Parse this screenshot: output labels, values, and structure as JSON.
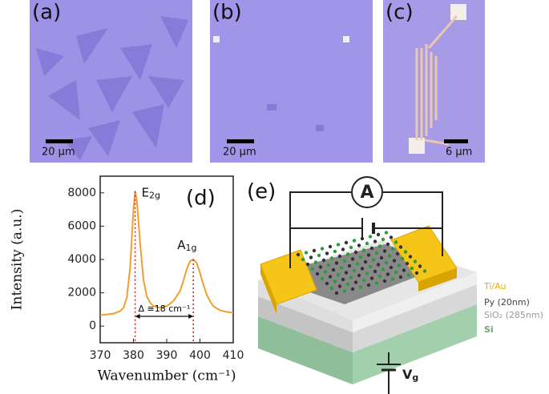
{
  "panels": {
    "a": {
      "label": "(a)",
      "scale": "20 μm"
    },
    "b": {
      "label": "(b)",
      "scale": "20 μm"
    },
    "c": {
      "label": "(c)",
      "scale": "6 μm"
    }
  },
  "chart_data": {
    "type": "line",
    "label": "(d)",
    "x_label": "Wavenumber (cm⁻¹)",
    "y_label": "Intensity (a.u.)",
    "x": [
      370,
      372,
      374,
      376,
      377,
      378,
      379,
      380,
      380.5,
      381,
      382,
      383,
      384,
      385,
      386,
      388,
      390,
      392,
      394,
      395,
      396,
      397,
      398,
      399,
      400,
      401,
      402,
      403,
      404,
      406,
      408,
      410
    ],
    "values": [
      650,
      700,
      750,
      900,
      1100,
      1700,
      3500,
      7000,
      8100,
      7600,
      5000,
      2800,
      1800,
      1400,
      1200,
      1100,
      1200,
      1500,
      2100,
      2700,
      3400,
      3900,
      4000,
      3800,
      3200,
      2500,
      1900,
      1500,
      1200,
      950,
      850,
      800
    ],
    "color": "#f0a030",
    "xlim": [
      370,
      410
    ],
    "ylim": [
      -1000,
      9000
    ],
    "xticks": [
      370,
      380,
      390,
      400,
      410
    ],
    "yticks": [
      0,
      2000,
      4000,
      6000,
      8000
    ],
    "peaks": [
      {
        "x": 380.5,
        "y": 8100,
        "text": "E",
        "sub": "2g"
      },
      {
        "x": 398,
        "y": 4000,
        "text": "A",
        "sub": "1g"
      }
    ],
    "delta_label": "Δ ≅18 cm⁻¹"
  },
  "schematic": {
    "label": "(e)",
    "meter": "A",
    "layers": [
      "Ti/Au",
      "Py (20nm)",
      "SiO₂ (285nm)",
      "Si"
    ],
    "gate": {
      "text": "V",
      "sub": "g"
    }
  }
}
